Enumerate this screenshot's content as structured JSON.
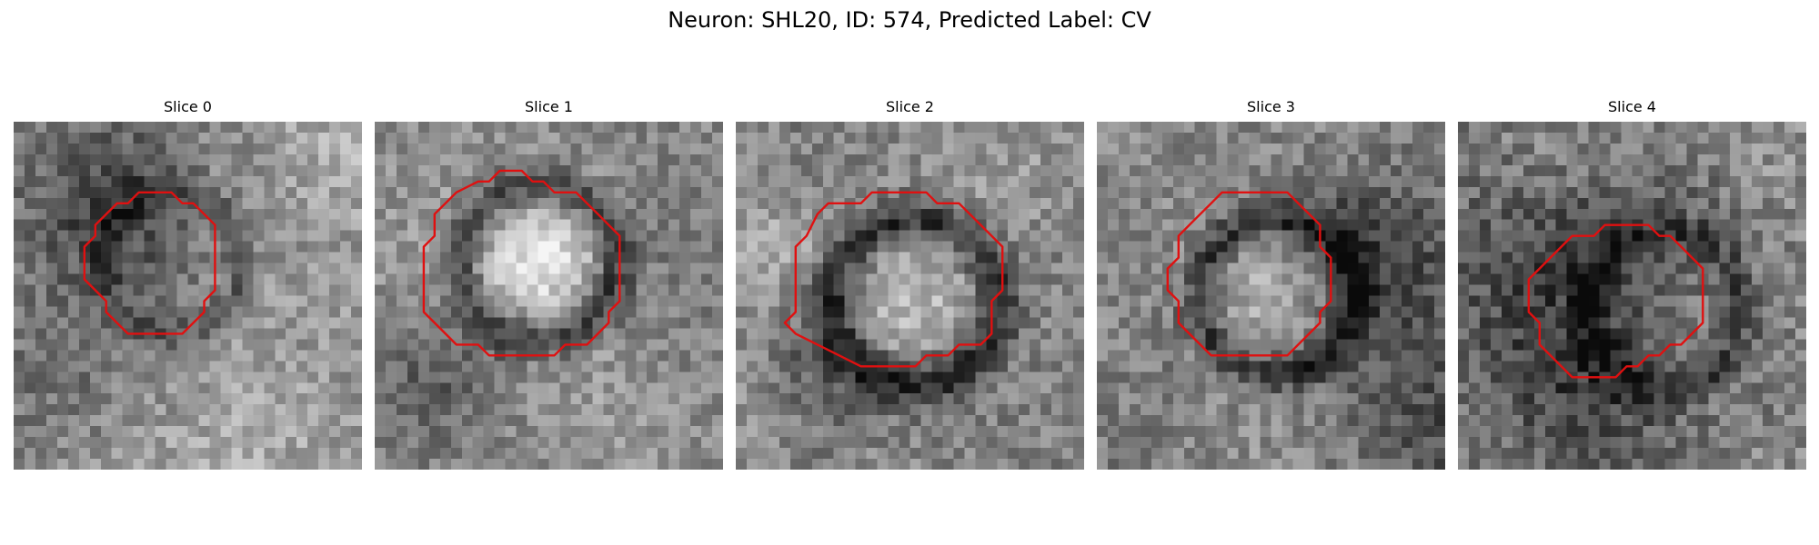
{
  "figure": {
    "title": "Neuron: SHL20, ID: 574, Predicted Label: CV"
  },
  "outline_color": "#e01010",
  "slices": [
    {
      "title": "Slice 0"
    },
    {
      "title": "Slice 1"
    },
    {
      "title": "Slice 2"
    },
    {
      "title": "Slice 3"
    },
    {
      "title": "Slice 4"
    }
  ]
}
